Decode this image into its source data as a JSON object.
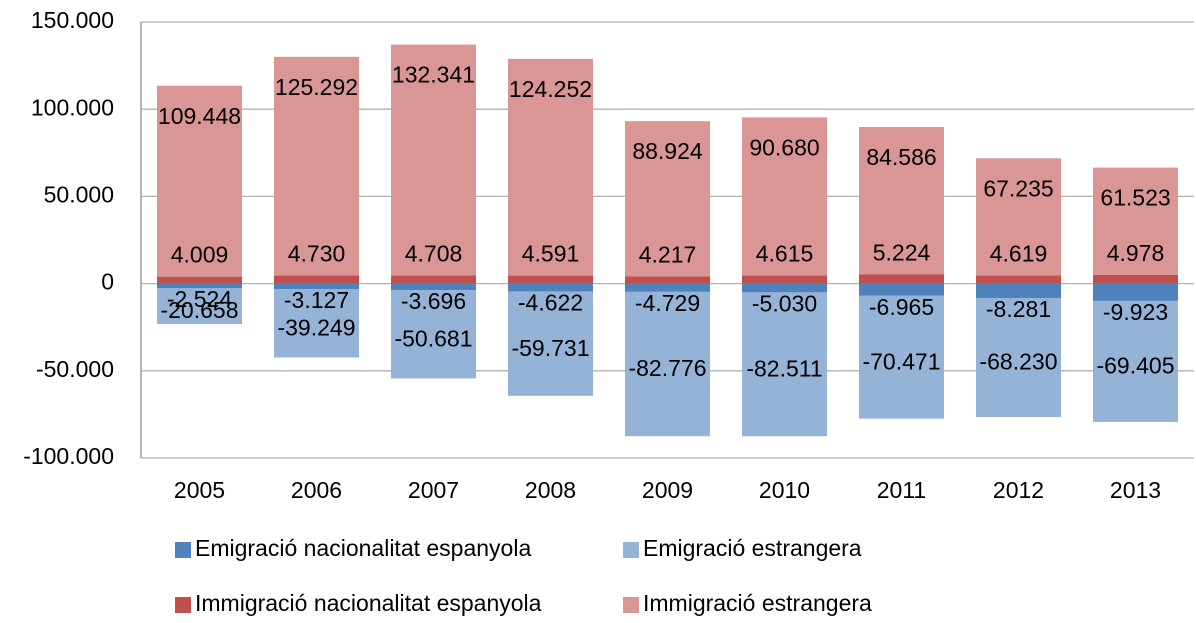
{
  "chart_data": {
    "type": "bar",
    "stacked": true,
    "categories": [
      "2005",
      "2006",
      "2007",
      "2008",
      "2009",
      "2010",
      "2011",
      "2012",
      "2013"
    ],
    "series": [
      {
        "name": "Emigració nacionalitat espanyola",
        "color": "#4f81bd",
        "values": [
          -2524,
          -3127,
          -3696,
          -4622,
          -4729,
          -5030,
          -6965,
          -8281,
          -9923
        ],
        "value_labels": [
          "-2.524",
          "-3.127",
          "-3.696",
          "-4.622",
          "-4.729",
          "-5.030",
          "-6.965",
          "-8.281",
          "-9.923"
        ]
      },
      {
        "name": "Emigració estrangera",
        "color": "#95b3d7",
        "values": [
          -20658,
          -39249,
          -50681,
          -59731,
          -82776,
          -82511,
          -70471,
          -68230,
          -69405
        ],
        "value_labels": [
          "-20.658",
          "-39.249",
          "-50.681",
          "-59.731",
          "-82.776",
          "-82.511",
          "-70.471",
          "-68.230",
          "-69.405"
        ]
      },
      {
        "name": "Immigració nacionalitat espanyola",
        "color": "#c0504d",
        "values": [
          4009,
          4730,
          4708,
          4591,
          4217,
          4615,
          5224,
          4619,
          4978
        ],
        "value_labels": [
          "4.009",
          "4.730",
          "4.708",
          "4.591",
          "4.217",
          "4.615",
          "5.224",
          "4.619",
          "4.978"
        ]
      },
      {
        "name": "Immigració estrangera",
        "color": "#d99694",
        "values": [
          109448,
          125292,
          132341,
          124252,
          88924,
          90680,
          84586,
          67235,
          61523
        ],
        "value_labels": [
          "109.448",
          "125.292",
          "132.341",
          "124.252",
          "88.924",
          "90.680",
          "84.586",
          "67.235",
          "61.523"
        ]
      }
    ],
    "ylim": [
      -100000,
      150000
    ],
    "yticks": [
      {
        "value": -100000,
        "label": "-100.000"
      },
      {
        "value": -50000,
        "label": "-50.000"
      },
      0,
      {
        "value": 50000,
        "label": "50.000"
      },
      {
        "value": 100000,
        "label": "100.000"
      },
      {
        "value": 150000,
        "label": "150.000"
      }
    ],
    "grid": true,
    "legend": "bottom"
  }
}
